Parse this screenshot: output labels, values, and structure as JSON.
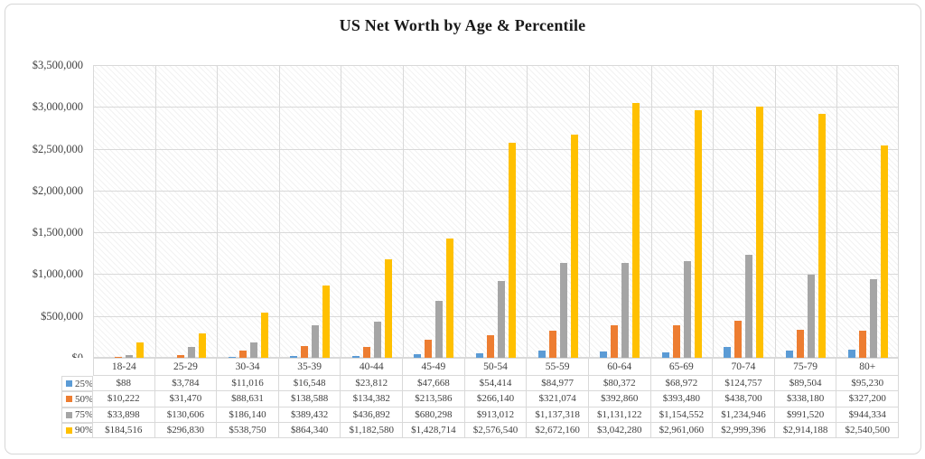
{
  "window": {
    "background": "#ffffff",
    "frame_border_color": "#d6d6d6"
  },
  "chart_data": {
    "type": "bar",
    "title": "US Net Worth by Age & Percentile",
    "categories": [
      "18-24",
      "25-29",
      "30-34",
      "35-39",
      "40-44",
      "45-49",
      "50-54",
      "55-59",
      "60-64",
      "65-69",
      "70-74",
      "75-79",
      "80+"
    ],
    "series": [
      {
        "name": "25%",
        "color": "#5B9BD5",
        "values": [
          88,
          3784,
          11016,
          16548,
          23812,
          47668,
          54414,
          84977,
          80372,
          68972,
          124757,
          89504,
          95230
        ],
        "labels": [
          "$88",
          "$3,784",
          "$11,016",
          "$16,548",
          "$23,812",
          "$47,668",
          "$54,414",
          "$84,977",
          "$80,372",
          "$68,972",
          "$124,757",
          "$89,504",
          "$95,230"
        ]
      },
      {
        "name": "50%",
        "color": "#ED7D31",
        "values": [
          10222,
          31470,
          88631,
          138588,
          134382,
          213586,
          266140,
          321074,
          392860,
          393480,
          438700,
          338180,
          327200
        ],
        "labels": [
          "$10,222",
          "$31,470",
          "$88,631",
          "$138,588",
          "$134,382",
          "$213,586",
          "$266,140",
          "$321,074",
          "$392,860",
          "$393,480",
          "$438,700",
          "$338,180",
          "$327,200"
        ]
      },
      {
        "name": "75%",
        "color": "#A5A5A5",
        "values": [
          33898,
          130606,
          186140,
          389432,
          436892,
          680298,
          913012,
          1137318,
          1131122,
          1154552,
          1234946,
          991520,
          944334
        ],
        "labels": [
          "$33,898",
          "$130,606",
          "$186,140",
          "$389,432",
          "$436,892",
          "$680,298",
          "$913,012",
          "$1,137,318",
          "$1,131,122",
          "$1,154,552",
          "$1,234,946",
          "$991,520",
          "$944,334"
        ]
      },
      {
        "name": "90%",
        "color": "#FFC000",
        "values": [
          184516,
          296830,
          538750,
          864340,
          1182580,
          1428714,
          2576540,
          2672160,
          3042280,
          2961060,
          2999396,
          2914188,
          2540500
        ],
        "labels": [
          "$184,516",
          "$296,830",
          "$538,750",
          "$864,340",
          "$1,182,580",
          "$1,428,714",
          "$2,576,540",
          "$2,672,160",
          "$3,042,280",
          "$2,961,060",
          "$2,999,396",
          "$2,914,188",
          "$2,540,500"
        ]
      }
    ],
    "ylim": [
      0,
      3500000
    ],
    "ytick_step": 500000,
    "ytick_labels_top_to_bottom": [
      "$3,500,000",
      "$3,000,000",
      "$2,500,000",
      "$2,000,000",
      "$1,500,000",
      "$1,000,000",
      "$500,000",
      "$0"
    ],
    "grid": true,
    "plot_background": "diagonal-hatch",
    "gridline_color": "#d9d9d9",
    "legend_position": "data-table-left"
  }
}
